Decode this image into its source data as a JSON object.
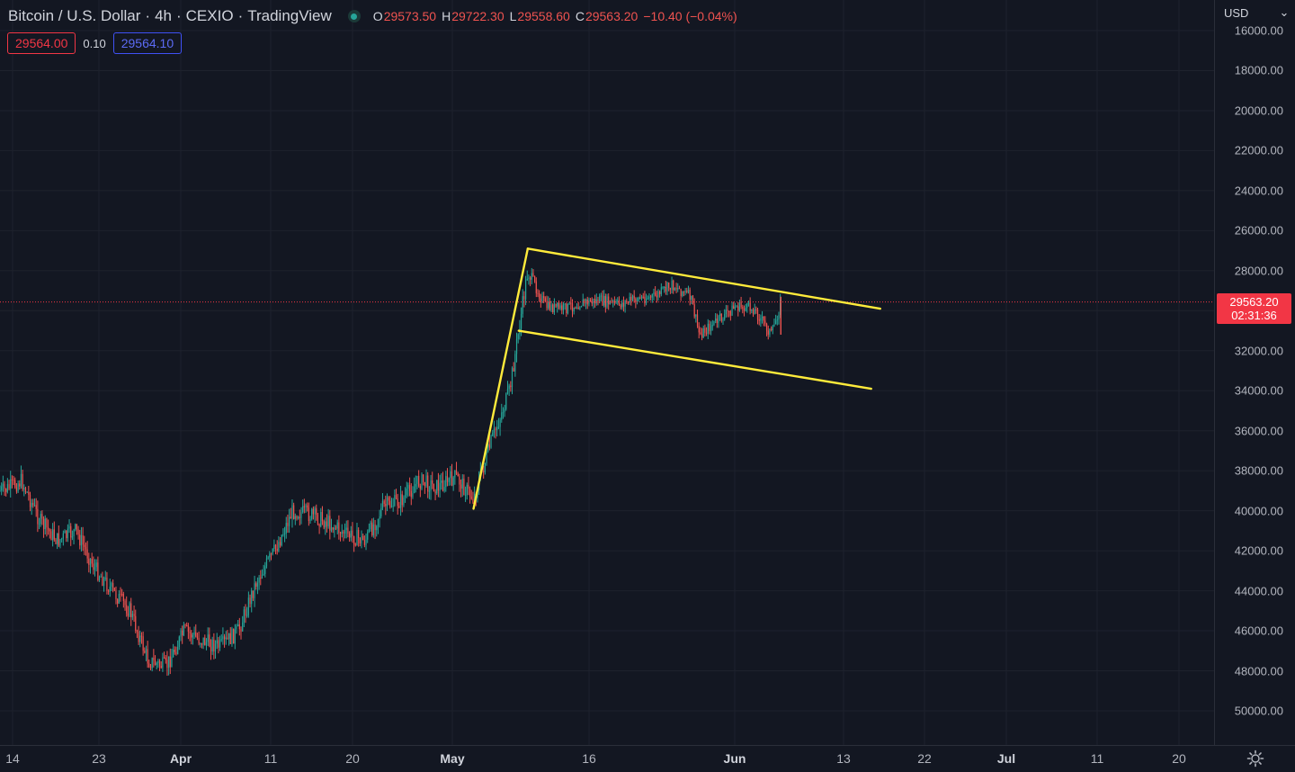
{
  "header": {
    "symbol": "Bitcoin / U.S. Dollar",
    "interval": "4h",
    "exchange": "CEXIO",
    "source": "TradingView",
    "ohlc": {
      "o_label": "O",
      "o": "29573.50",
      "h_label": "H",
      "h": "29722.30",
      "l_label": "L",
      "l": "29558.60",
      "c_label": "C",
      "c": "29563.20",
      "change": "−10.40 (−0.04%)"
    },
    "status_icon": "market-open-dot-icon"
  },
  "bidask": {
    "bid": "29564.00",
    "spread": "0.10",
    "ask": "29564.10"
  },
  "price_axis": {
    "currency": "USD",
    "ticks": [
      "16000.00",
      "18000.00",
      "20000.00",
      "22000.00",
      "24000.00",
      "26000.00",
      "28000.00",
      "30000.00",
      "32000.00",
      "34000.00",
      "36000.00",
      "38000.00",
      "40000.00",
      "42000.00",
      "44000.00",
      "46000.00",
      "48000.00",
      "50000.00"
    ],
    "last_price": "29563.20",
    "countdown": "02:31:36"
  },
  "time_axis": {
    "ticks": [
      {
        "label": "14",
        "major": false
      },
      {
        "label": "23",
        "major": false
      },
      {
        "label": "Apr",
        "major": true
      },
      {
        "label": "11",
        "major": false
      },
      {
        "label": "20",
        "major": false
      },
      {
        "label": "May",
        "major": true
      },
      {
        "label": "16",
        "major": false
      },
      {
        "label": "Jun",
        "major": true
      },
      {
        "label": "13",
        "major": false
      },
      {
        "label": "22",
        "major": false
      },
      {
        "label": "Jul",
        "major": true
      },
      {
        "label": "11",
        "major": false
      },
      {
        "label": "20",
        "major": false
      }
    ],
    "settings_icon": "gear-icon"
  },
  "colors": {
    "up": "#26a69a",
    "down": "#ef5350",
    "trendline": "#ffeb3b",
    "grid": "#1e222d",
    "price_line": "#f23645"
  },
  "chart_data": {
    "type": "candlestick",
    "axis": "inverted",
    "ylim": [
      16000,
      51000
    ],
    "last_price": 29563.2,
    "trendlines": [
      {
        "from": [
          "May 4",
          39900
        ],
        "to": [
          "May 10",
          26900
        ]
      },
      {
        "from": [
          "May 10",
          26900
        ],
        "to": [
          "Jun 18",
          29900
        ]
      },
      {
        "from": [
          "May 9",
          31000
        ],
        "to": [
          "Jun 17",
          33900
        ]
      }
    ],
    "path": [
      [
        "Mar 13",
        39000
      ],
      [
        "Mar 15",
        38500
      ],
      [
        "Mar 17",
        40500
      ],
      [
        "Mar 19",
        41500
      ],
      [
        "Mar 21",
        41000
      ],
      [
        "Mar 23",
        42800
      ],
      [
        "Mar 25",
        44000
      ],
      [
        "Mar 27",
        45000
      ],
      [
        "Mar 29",
        47500
      ],
      [
        "Mar 31",
        47800
      ],
      [
        "Apr 2",
        46000
      ],
      [
        "Apr 4",
        46500
      ],
      [
        "Apr 6",
        46800
      ],
      [
        "Apr 8",
        46000
      ],
      [
        "Apr 10",
        43500
      ],
      [
        "Apr 12",
        42000
      ],
      [
        "Apr 14",
        40000
      ],
      [
        "Apr 16",
        40200
      ],
      [
        "Apr 18",
        40600
      ],
      [
        "Apr 20",
        41200
      ],
      [
        "Apr 22",
        41500
      ],
      [
        "Apr 24",
        39800
      ],
      [
        "Apr 26",
        39500
      ],
      [
        "Apr 28",
        38500
      ],
      [
        "Apr 30",
        38800
      ],
      [
        "May 2",
        38300
      ],
      [
        "May 4",
        39400
      ],
      [
        "May 6",
        36500
      ],
      [
        "May 8",
        34000
      ],
      [
        "May 9",
        31000
      ],
      [
        "May 10",
        28000
      ],
      [
        "May 12",
        29800
      ],
      [
        "May 14",
        29900
      ],
      [
        "May 16",
        29600
      ],
      [
        "May 18",
        29500
      ],
      [
        "May 20",
        29700
      ],
      [
        "May 22",
        29400
      ],
      [
        "May 24",
        29300
      ],
      [
        "May 26",
        28700
      ],
      [
        "May 28",
        29300
      ],
      [
        "May 29",
        31200
      ],
      [
        "May 31",
        30500
      ],
      [
        "Jun 2",
        29800
      ],
      [
        "Jun 4",
        29900
      ],
      [
        "Jun 6",
        31200
      ],
      [
        "Jun 7",
        29563
      ]
    ]
  }
}
